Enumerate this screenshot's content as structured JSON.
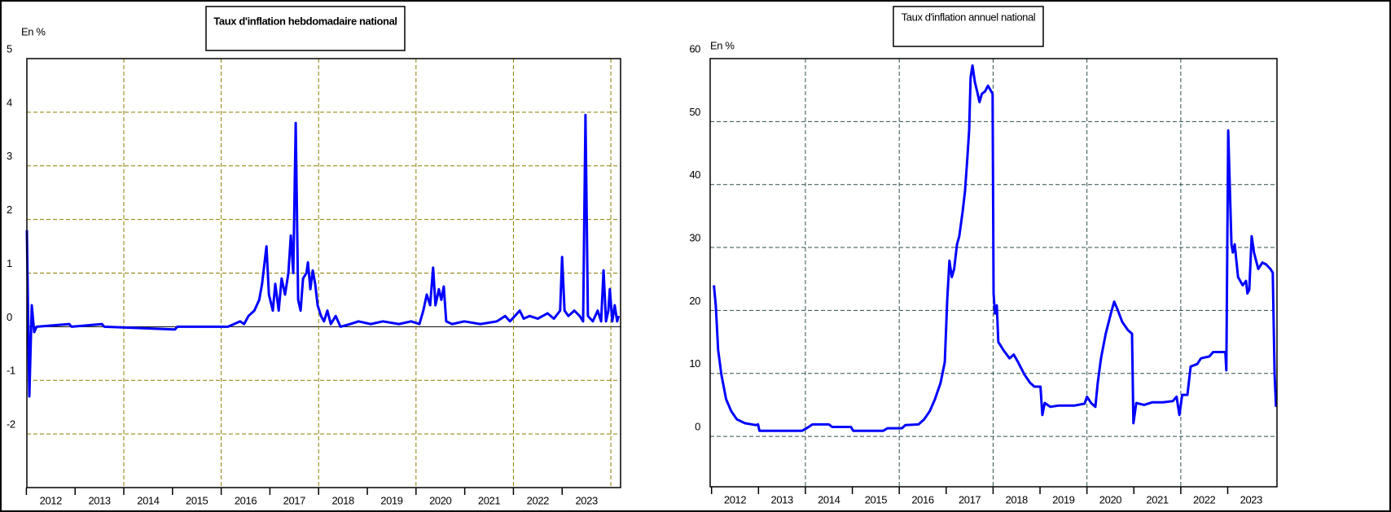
{
  "chart_data": [
    {
      "type": "line",
      "title": "Taux d'inflation hebdomadaire national",
      "y_label": "En %",
      "color": "#0000ff",
      "grid": true,
      "grid_color": "#8b7d00",
      "zero_line": true,
      "title_bold": true,
      "xlim": [
        2012.01,
        2024.2
      ],
      "ylim": [
        -3,
        5
      ],
      "yticks": [
        -2,
        -1,
        0,
        1,
        2,
        3,
        4,
        5
      ],
      "xgrid": [
        2014,
        2016,
        2018,
        2020,
        2022,
        2024
      ],
      "xticks": [
        {
          "value": 2012.5,
          "label": "2012"
        },
        {
          "value": 2013.5,
          "label": "2013"
        },
        {
          "value": 2014.5,
          "label": "2014"
        },
        {
          "value": 2015.5,
          "label": "2015"
        },
        {
          "value": 2016.5,
          "label": "2016"
        },
        {
          "value": 2017.5,
          "label": "2017"
        },
        {
          "value": 2018.5,
          "label": "2018"
        },
        {
          "value": 2019.5,
          "label": "2019"
        },
        {
          "value": 2020.5,
          "label": "2020"
        },
        {
          "value": 2021.5,
          "label": "2021"
        },
        {
          "value": 2022.5,
          "label": "2022"
        },
        {
          "value": 2023.5,
          "label": "2023"
        }
      ],
      "x": [
        2012.01,
        2012.06,
        2012.11,
        2012.16,
        2012.21,
        2012.88,
        2012.93,
        2013.55,
        2013.6,
        2015.05,
        2015.1,
        2016.14,
        2016.39,
        2016.47,
        2016.56,
        2016.68,
        2016.78,
        2016.84,
        2016.93,
        2016.98,
        2017.06,
        2017.11,
        2017.18,
        2017.24,
        2017.31,
        2017.38,
        2017.43,
        2017.48,
        2017.53,
        2017.58,
        2017.63,
        2017.68,
        2017.75,
        2017.78,
        2017.83,
        2017.88,
        2017.93,
        2017.98,
        2018.05,
        2018.11,
        2018.18,
        2018.25,
        2018.35,
        2018.45,
        2018.65,
        2018.82,
        2019.07,
        2019.32,
        2019.65,
        2019.9,
        2020.07,
        2020.15,
        2020.22,
        2020.29,
        2020.35,
        2020.4,
        2020.47,
        2020.52,
        2020.57,
        2020.62,
        2020.74,
        2020.99,
        2021.32,
        2021.66,
        2021.83,
        2021.93,
        2022.03,
        2022.13,
        2022.21,
        2022.33,
        2022.5,
        2022.7,
        2022.83,
        2022.96,
        2023.0,
        2023.05,
        2023.13,
        2023.25,
        2023.36,
        2023.43,
        2023.48,
        2023.53,
        2023.63,
        2023.73,
        2023.8,
        2023.85,
        2023.9,
        2023.95,
        2023.98,
        2024.03,
        2024.08,
        2024.13,
        2024.16
      ],
      "values": [
        1.8,
        -1.3,
        0.4,
        -0.1,
        0,
        0.05,
        0,
        0.05,
        0,
        -0.05,
        0,
        0,
        0.1,
        0.05,
        0.2,
        0.3,
        0.5,
        0.8,
        1.5,
        0.6,
        0.3,
        0.8,
        0.3,
        0.9,
        0.6,
        1.0,
        1.7,
        1.0,
        3.8,
        0.5,
        0.3,
        0.9,
        1.0,
        1.2,
        0.7,
        1.05,
        0.8,
        0.4,
        0.2,
        0.1,
        0.3,
        0.05,
        0.2,
        0,
        0.05,
        0.1,
        0.05,
        0.1,
        0.05,
        0.1,
        0.05,
        0.3,
        0.6,
        0.4,
        1.1,
        0.4,
        0.7,
        0.5,
        0.75,
        0.1,
        0.05,
        0.1,
        0.05,
        0.1,
        0.2,
        0.1,
        0.2,
        0.3,
        0.15,
        0.2,
        0.15,
        0.25,
        0.15,
        0.3,
        1.3,
        0.3,
        0.2,
        0.3,
        0.2,
        0.1,
        3.95,
        0.2,
        0.1,
        0.3,
        0.1,
        1.05,
        0.1,
        0.3,
        0.7,
        0.1,
        0.4,
        0.1,
        0.2
      ]
    },
    {
      "type": "line",
      "title": "Taux d'inflation annuel national",
      "y_label": "En %",
      "color": "#0000ff",
      "grid": true,
      "grid_color": "#2f4f4f",
      "zero_line": false,
      "title_bold": false,
      "xlim": [
        2011.97,
        2024.05
      ],
      "ylim": [
        -8,
        60
      ],
      "yticks": [
        0,
        10,
        20,
        30,
        40,
        50,
        60
      ],
      "xgrid": [
        2014,
        2016,
        2018,
        2020,
        2022
      ],
      "xticks": [
        {
          "value": 2012.5,
          "label": "2012"
        },
        {
          "value": 2013.5,
          "label": "2013"
        },
        {
          "value": 2014.5,
          "label": "2014"
        },
        {
          "value": 2015.5,
          "label": "2015"
        },
        {
          "value": 2016.5,
          "label": "2016"
        },
        {
          "value": 2017.5,
          "label": "2017"
        },
        {
          "value": 2018.5,
          "label": "2018"
        },
        {
          "value": 2019.5,
          "label": "2019"
        },
        {
          "value": 2020.5,
          "label": "2020"
        },
        {
          "value": 2021.5,
          "label": "2021"
        },
        {
          "value": 2022.5,
          "label": "2022"
        },
        {
          "value": 2023.5,
          "label": "2023"
        }
      ],
      "x": [
        2012.05,
        2012.09,
        2012.14,
        2012.21,
        2012.31,
        2012.42,
        2012.54,
        2012.71,
        2012.94,
        2012.99,
        2013.02,
        2013.93,
        2014.05,
        2014.15,
        2014.5,
        2014.57,
        2014.97,
        2015.02,
        2015.66,
        2015.75,
        2016.06,
        2016.13,
        2016.41,
        2016.53,
        2016.65,
        2016.76,
        2016.88,
        2016.97,
        2017.02,
        2017.07,
        2017.12,
        2017.17,
        2017.23,
        2017.28,
        2017.35,
        2017.4,
        2017.45,
        2017.49,
        2017.52,
        2017.56,
        2017.61,
        2017.66,
        2017.71,
        2017.76,
        2017.83,
        2017.89,
        2017.96,
        2017.99,
        2018.01,
        2018.04,
        2018.08,
        2018.11,
        2018.22,
        2018.35,
        2018.44,
        2018.53,
        2018.67,
        2018.79,
        2018.88,
        2019.01,
        2019.05,
        2019.1,
        2019.22,
        2019.4,
        2019.74,
        2019.95,
        2020.0,
        2020.09,
        2020.18,
        2020.23,
        2020.3,
        2020.4,
        2020.51,
        2020.58,
        2020.65,
        2020.75,
        2020.87,
        2020.96,
        2020.99,
        2021.05,
        2021.22,
        2021.39,
        2021.62,
        2021.83,
        2021.91,
        2021.97,
        2022.03,
        2022.14,
        2022.21,
        2022.35,
        2022.43,
        2022.61,
        2022.69,
        2022.95,
        2022.97,
        2023.01,
        2023.08,
        2023.11,
        2023.15,
        2023.22,
        2023.32,
        2023.39,
        2023.42,
        2023.46,
        2023.51,
        2023.56,
        2023.65,
        2023.74,
        2023.82,
        2023.91,
        2023.96,
        2024.0,
        2024.03
      ],
      "values": [
        24,
        20.8,
        13.7,
        9.8,
        5.9,
        4,
        2.7,
        2.1,
        1.8,
        1.9,
        0.9,
        0.9,
        1.4,
        1.9,
        1.9,
        1.5,
        1.5,
        0.9,
        0.9,
        1.3,
        1.3,
        1.8,
        1.9,
        2.7,
        4,
        5.9,
        8.5,
        11.8,
        21.4,
        27.9,
        25.3,
        26.6,
        30.5,
        31.8,
        35.7,
        38.9,
        44,
        48.6,
        57,
        58.9,
        56.3,
        54.8,
        53.1,
        54.4,
        54.8,
        55.7,
        54.8,
        54.4,
        22.7,
        19.5,
        20.8,
        15,
        13.7,
        12.4,
        13,
        11.8,
        9.8,
        8.5,
        7.9,
        7.9,
        3.4,
        5.3,
        4.7,
        4.9,
        4.9,
        5.2,
        6.3,
        5.3,
        4.7,
        8.5,
        12.4,
        16.3,
        19.5,
        21.4,
        20.2,
        18.2,
        16.9,
        16.3,
        2.1,
        5.3,
        5,
        5.4,
        5.4,
        5.6,
        6.3,
        3.4,
        6.6,
        6.6,
        11.1,
        11.5,
        12.4,
        12.7,
        13.4,
        13.4,
        10.5,
        48.6,
        30.5,
        29.2,
        30.5,
        25.3,
        24,
        24.7,
        22.7,
        23.3,
        31.8,
        29.2,
        26.6,
        27.6,
        27.3,
        26.6,
        26,
        9.8,
        4.7
      ]
    }
  ]
}
